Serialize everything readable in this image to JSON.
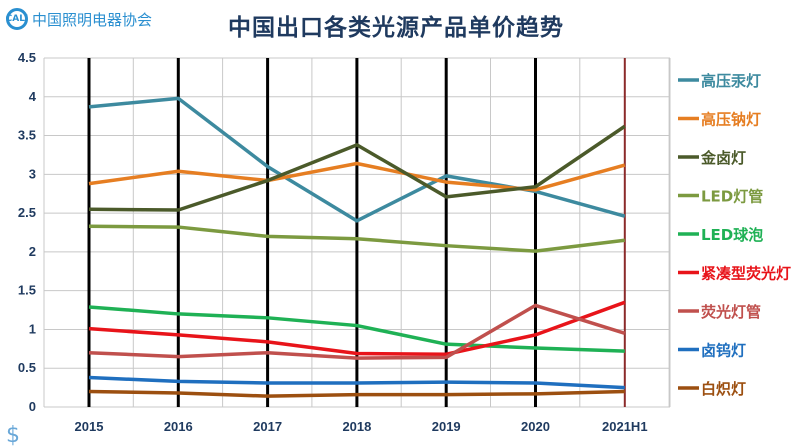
{
  "logo_text": "中国照明电器协会",
  "logo_mark": "CALI",
  "chart_data": {
    "type": "line",
    "title": "中国出口各类光源产品单价趋势",
    "xlabel": "",
    "ylabel": "",
    "categories": [
      "2015",
      "2016",
      "2017",
      "2018",
      "2019",
      "2020",
      "2021H1"
    ],
    "ylim": [
      0,
      4.5
    ],
    "yticks": [
      "0",
      "0.5",
      "1",
      "1.5",
      "2",
      "2.5",
      "3",
      "3.5",
      "4",
      "4.5"
    ],
    "grid": true,
    "legend_position": "right",
    "series": [
      {
        "name": "高压汞灯",
        "color": "#3d8a9f",
        "values": [
          3.87,
          3.98,
          3.1,
          2.4,
          2.98,
          2.78,
          2.46
        ]
      },
      {
        "name": "高压钠灯",
        "color": "#e67e22",
        "values": [
          2.88,
          3.04,
          2.92,
          3.14,
          2.9,
          2.8,
          3.12
        ]
      },
      {
        "name": "金卤灯",
        "color": "#4b5a2a",
        "values": [
          2.55,
          2.54,
          2.92,
          3.38,
          2.71,
          2.84,
          3.62
        ]
      },
      {
        "name": "LED灯管",
        "color": "#7c9a40",
        "values": [
          2.33,
          2.32,
          2.2,
          2.17,
          2.08,
          2.01,
          2.15
        ]
      },
      {
        "name": "LED球泡",
        "color": "#1fb155",
        "values": [
          1.29,
          1.2,
          1.15,
          1.05,
          0.81,
          0.76,
          0.72
        ]
      },
      {
        "name": "紧凑型荧光灯",
        "color": "#e8141a",
        "values": [
          1.01,
          0.93,
          0.84,
          0.69,
          0.68,
          0.93,
          1.35
        ]
      },
      {
        "name": "荧光灯管",
        "color": "#c0504d",
        "values": [
          0.7,
          0.65,
          0.7,
          0.63,
          0.64,
          1.31,
          0.95
        ]
      },
      {
        "name": "卤钨灯",
        "color": "#1f6fbf",
        "values": [
          0.38,
          0.33,
          0.31,
          0.31,
          0.32,
          0.31,
          0.25
        ]
      },
      {
        "name": "白炽灯",
        "color": "#9c4f10",
        "values": [
          0.2,
          0.18,
          0.14,
          0.16,
          0.16,
          0.17,
          0.2
        ]
      }
    ]
  }
}
